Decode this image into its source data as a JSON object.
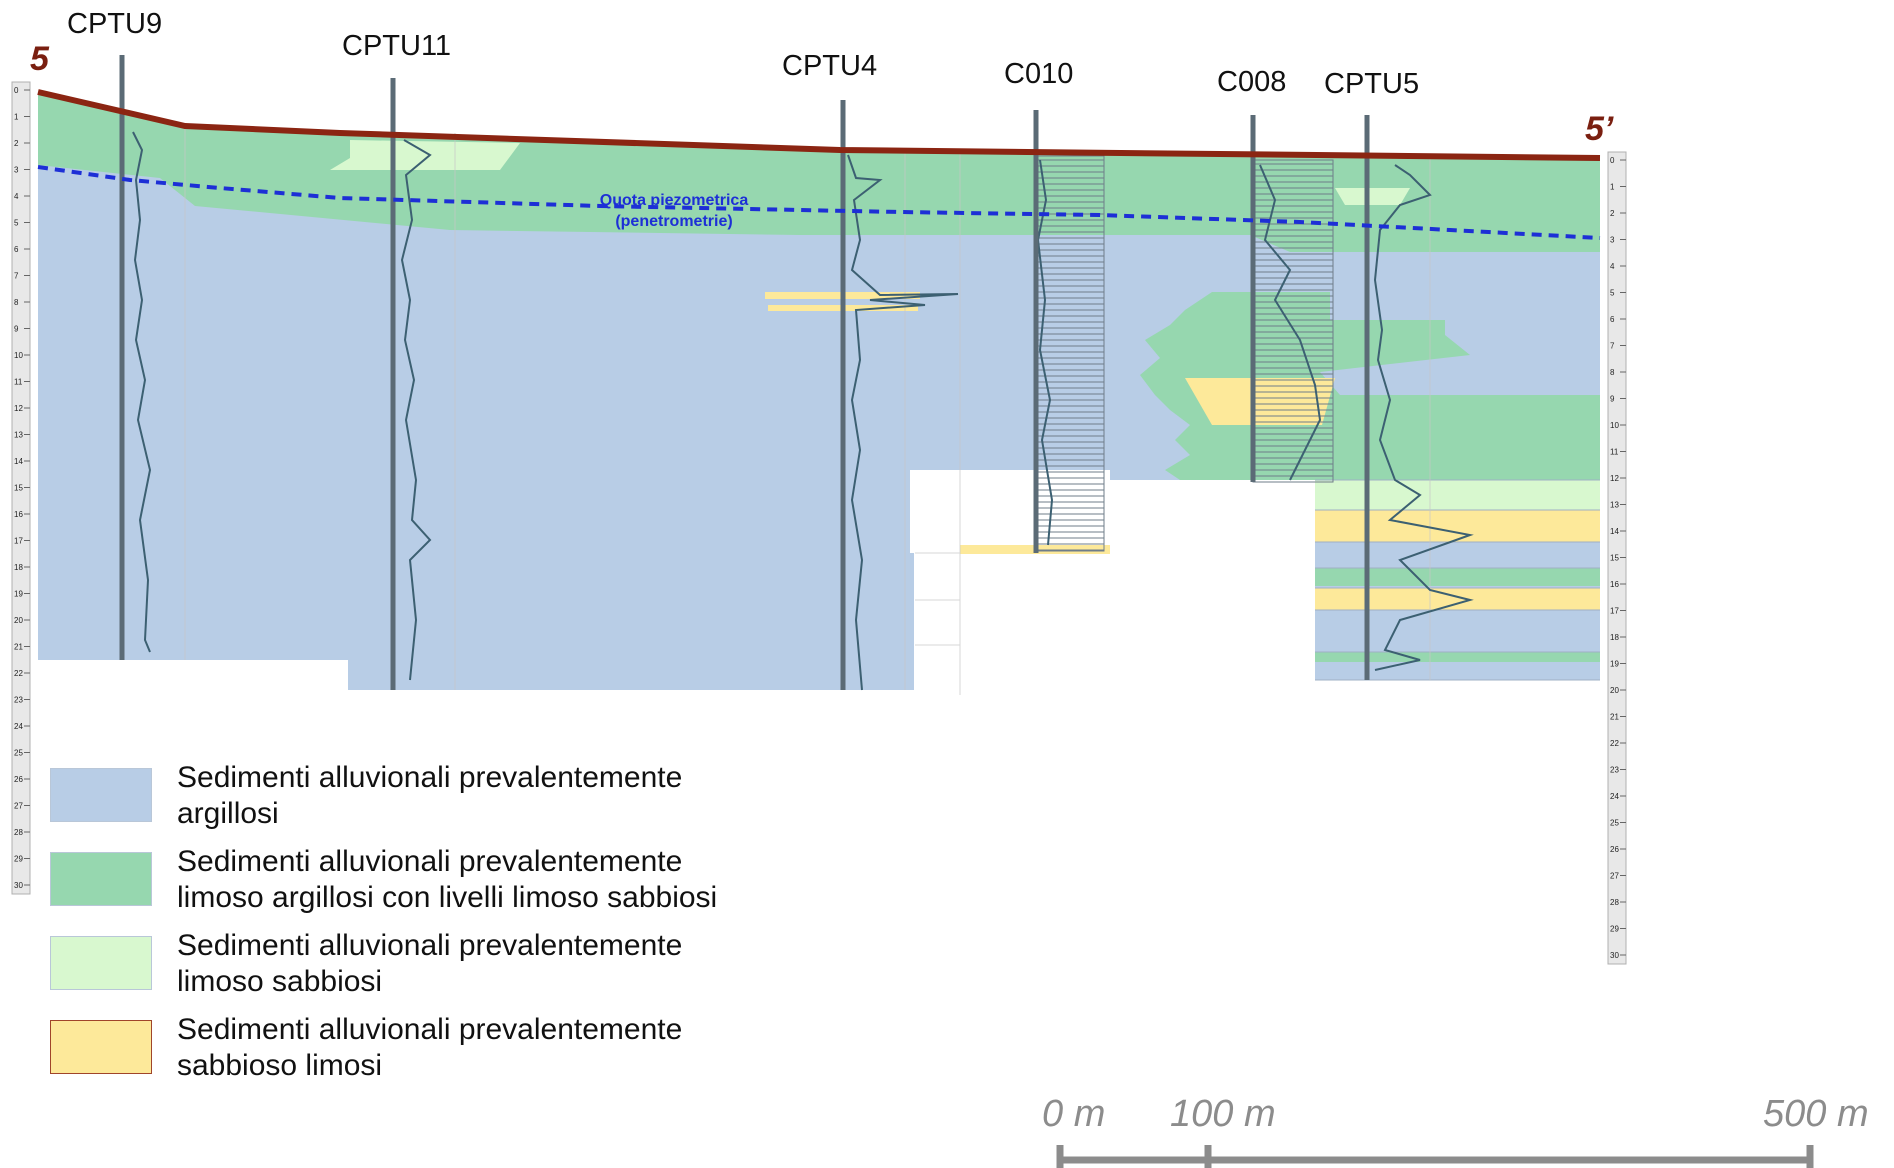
{
  "section": {
    "start_label": "5",
    "end_label": "5’",
    "water_table_label_1": "Quota piezometrica",
    "water_table_label_2": "(penetrometrie)",
    "boreholes": [
      {
        "id": "CPTU9"
      },
      {
        "id": "CPTU11"
      },
      {
        "id": "CPTU4"
      },
      {
        "id": "C010"
      },
      {
        "id": "C008"
      },
      {
        "id": "CPTU5"
      }
    ],
    "depth_ruler_left": [
      "0",
      "1",
      "2",
      "3",
      "4",
      "5",
      "6",
      "7",
      "8",
      "9",
      "10",
      "11",
      "12",
      "13",
      "14",
      "15",
      "16",
      "17",
      "18",
      "19",
      "20",
      "21",
      "22",
      "23",
      "24",
      "25",
      "26",
      "27",
      "28",
      "29",
      "30"
    ],
    "depth_ruler_right": [
      "0",
      "1",
      "2",
      "3",
      "4",
      "5",
      "6",
      "7",
      "8",
      "9",
      "10",
      "11",
      "12",
      "13",
      "14",
      "15",
      "16",
      "17",
      "18",
      "19",
      "20",
      "21",
      "22",
      "23",
      "24",
      "25",
      "26",
      "27",
      "28",
      "29",
      "30"
    ]
  },
  "colors": {
    "clay": "#b8cde6",
    "silty_clay": "#96d7af",
    "silty_sand": "#d8f8cf",
    "sandy_silt": "#fde99a",
    "ground_line": "#8b2512",
    "water_table": "#1d2fd6"
  },
  "legend": [
    {
      "line1": "Sedimenti alluvionali prevalentemente",
      "line2": "argillosi",
      "color": "#b8cde6"
    },
    {
      "line1": "Sedimenti alluvionali prevalentemente",
      "line2": "limoso argillosi con livelli limoso sabbiosi",
      "color": "#96d7af"
    },
    {
      "line1": "Sedimenti alluvionali prevalentemente",
      "line2": "limoso sabbiosi",
      "color": "#d8f8cf"
    },
    {
      "line1": "Sedimenti alluvionali prevalentemente",
      "line2": "sabbioso limosi",
      "color": "#fde99a"
    }
  ],
  "scale_bar": {
    "labels": [
      "0 m",
      "100 m",
      "500 m"
    ]
  }
}
